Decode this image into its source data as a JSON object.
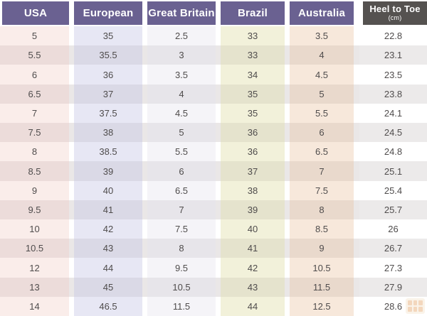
{
  "chart_data": {
    "type": "table",
    "columns": [
      {
        "key": "usa",
        "label": "USA"
      },
      {
        "key": "euro",
        "label": "European"
      },
      {
        "key": "gb",
        "label": "Great Britain"
      },
      {
        "key": "brazil",
        "label": "Brazil"
      },
      {
        "key": "australia",
        "label": "Australia"
      },
      {
        "key": "heel",
        "label": "Heel to Toe",
        "sublabel": "(cm)"
      }
    ],
    "rows": [
      [
        "5",
        "35",
        "2.5",
        "33",
        "3.5",
        "22.8"
      ],
      [
        "5.5",
        "35.5",
        "3",
        "33",
        "4",
        "23.1"
      ],
      [
        "6",
        "36",
        "3.5",
        "34",
        "4.5",
        "23.5"
      ],
      [
        "6.5",
        "37",
        "4",
        "35",
        "5",
        "23.8"
      ],
      [
        "7",
        "37.5",
        "4.5",
        "35",
        "5.5",
        "24.1"
      ],
      [
        "7.5",
        "38",
        "5",
        "36",
        "6",
        "24.5"
      ],
      [
        "8",
        "38.5",
        "5.5",
        "36",
        "6.5",
        "24.8"
      ],
      [
        "8.5",
        "39",
        "6",
        "37",
        "7",
        "25.1"
      ],
      [
        "9",
        "40",
        "6.5",
        "38",
        "7.5",
        "25.4"
      ],
      [
        "9.5",
        "41",
        "7",
        "39",
        "8",
        "25.7"
      ],
      [
        "10",
        "42",
        "7.5",
        "40",
        "8.5",
        "26"
      ],
      [
        "10.5",
        "43",
        "8",
        "41",
        "9",
        "26.7"
      ],
      [
        "12",
        "44",
        "9.5",
        "42",
        "10.5",
        "27.3"
      ],
      [
        "13",
        "45",
        "10.5",
        "43",
        "11.5",
        "27.9"
      ],
      [
        "14",
        "46.5",
        "11.5",
        "44",
        "12.5",
        "28.6"
      ]
    ]
  },
  "colors": {
    "header_purple": "#6a6191",
    "header_gray": "#555250",
    "text": "#4f4c4c",
    "gap_dark": "#eae7e7",
    "columns": {
      "usa": {
        "light": "#faedea",
        "dark": "#ecdcda"
      },
      "euro": {
        "light": "#e7e7f4",
        "dark": "#dad9e6"
      },
      "gb": {
        "light": "#f5f4f8",
        "dark": "#e7e5ea"
      },
      "brazil": {
        "light": "#f2f1da",
        "dark": "#e5e3cd"
      },
      "australia": {
        "light": "#f7e8db",
        "dark": "#e9d9cc"
      },
      "heel": {
        "light": "#ffffff",
        "dark": "#eceaea"
      }
    }
  }
}
